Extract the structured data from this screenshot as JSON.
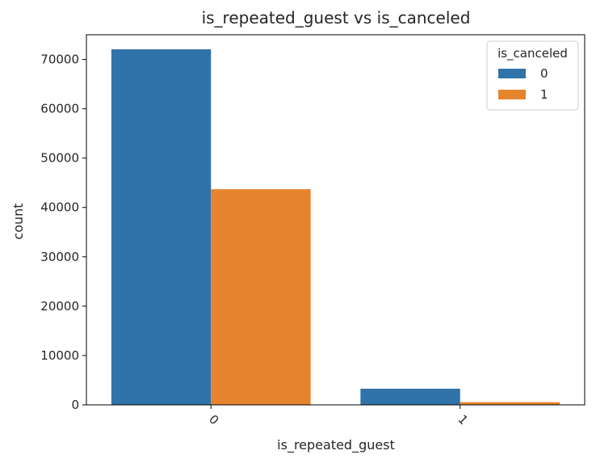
{
  "chart_data": {
    "type": "bar",
    "title": "is_repeated_guest vs is_canceled",
    "xlabel": "is_repeated_guest",
    "ylabel": "count",
    "categories": [
      "0",
      "1"
    ],
    "series": [
      {
        "name": "0",
        "color": "#2f73a8",
        "values": [
          72050,
          3275
        ]
      },
      {
        "name": "1",
        "color": "#e6832d",
        "values": [
          43700,
          550
        ]
      }
    ],
    "ylim": [
      0,
      75000
    ],
    "yticks": [
      0,
      10000,
      20000,
      30000,
      40000,
      50000,
      60000,
      70000
    ],
    "xtick_rotation_deg": 45,
    "legend": {
      "title": "is_canceled",
      "placement": "top-right"
    },
    "grid": false
  }
}
